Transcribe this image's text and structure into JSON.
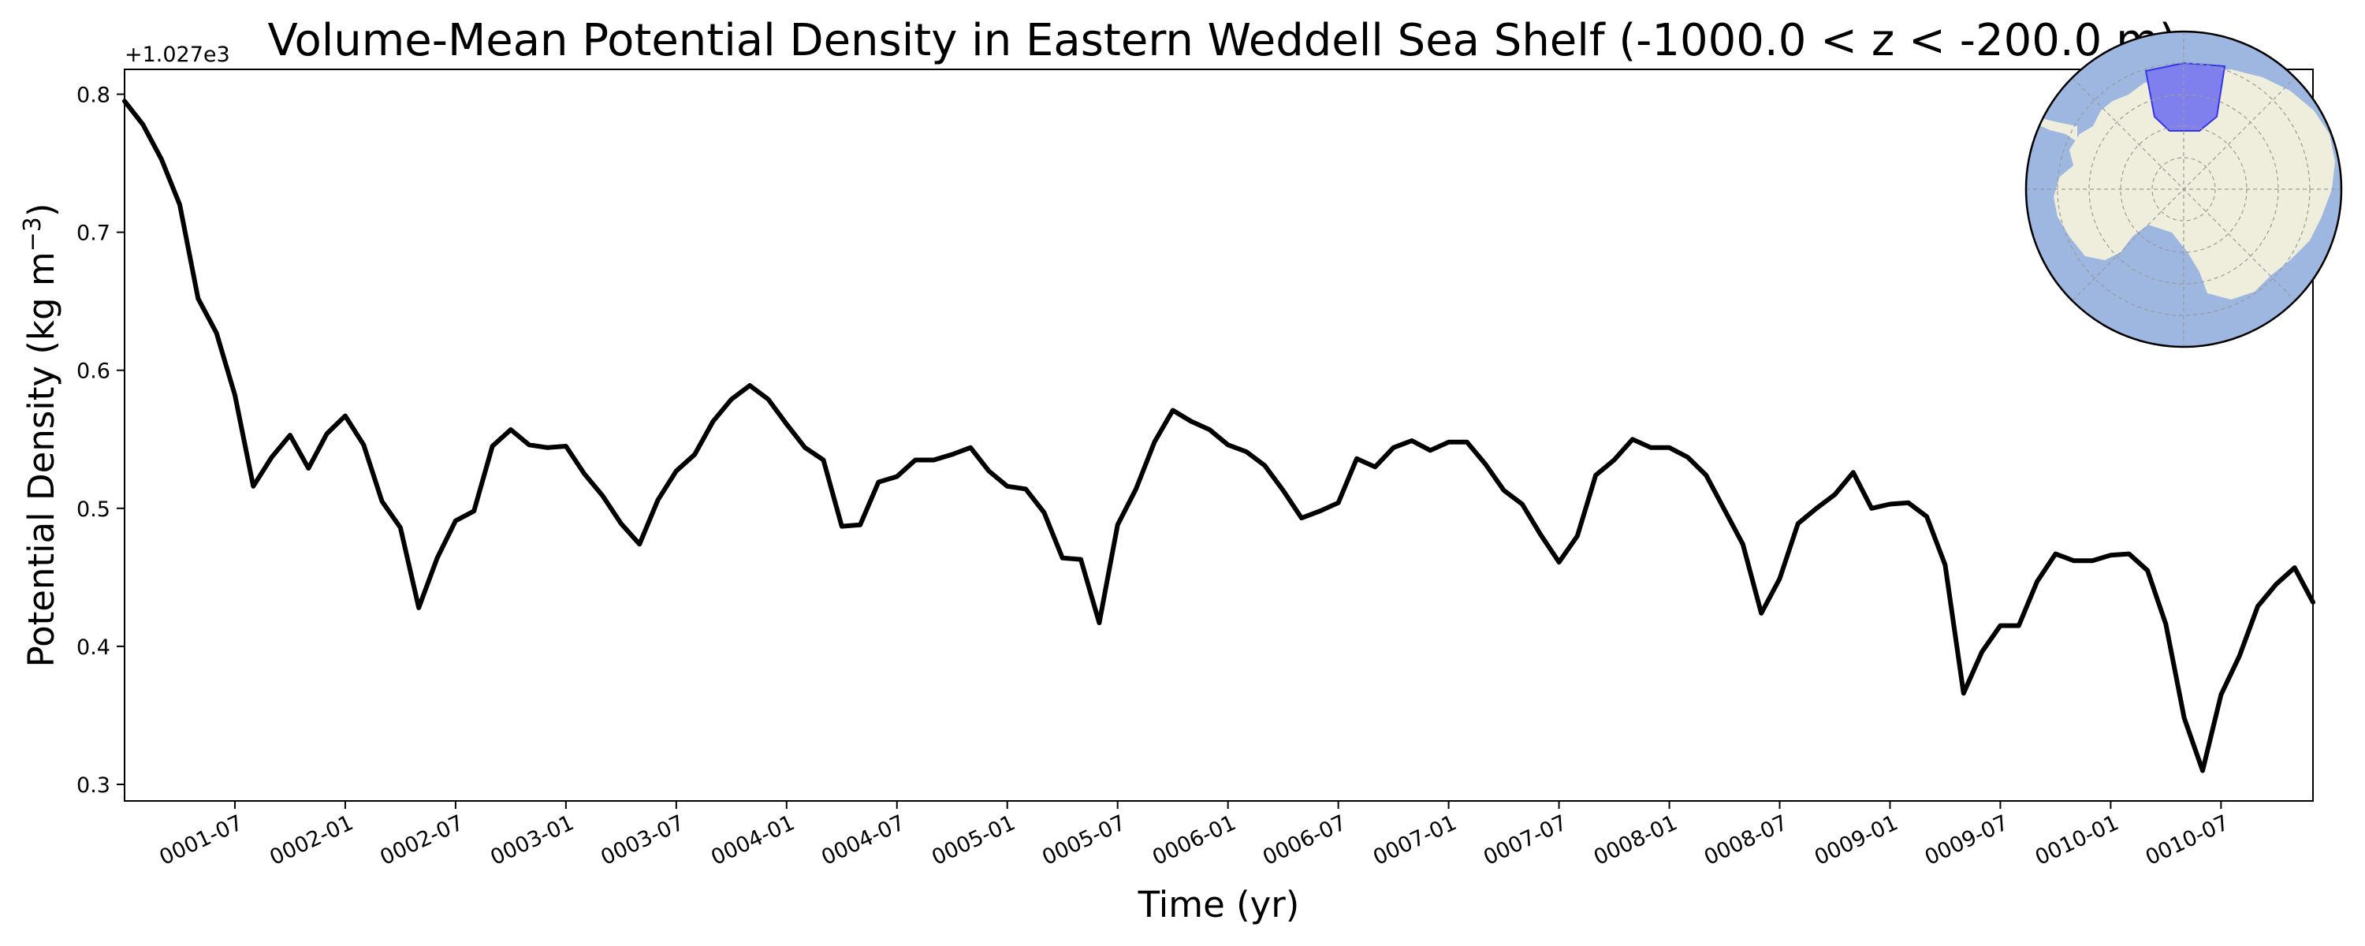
{
  "colors": {
    "line": "#000000",
    "ocean": "#9db7e0",
    "land": "#efeedd",
    "region": "#7f80ee",
    "region_edge": "#3535e8",
    "graticule": "#9a9a9a"
  },
  "chart_data": {
    "type": "line",
    "title": "Volume-Mean Potential Density in Eastern Weddell Sea Shelf (-1000.0 < z < -200.0 m)",
    "xlabel": "Time (yr)",
    "ylabel_main": "Potential Density (kg m",
    "ylabel_sup": "−3",
    "ylabel_close": ")",
    "y_offset_label": "+1.027e3",
    "y_offset": 1027,
    "ylim": [
      0.288,
      0.818
    ],
    "yticks": [
      0.3,
      0.4,
      0.5,
      0.6,
      0.7,
      0.8
    ],
    "ytick_labels": [
      "0.3",
      "0.4",
      "0.5",
      "0.6",
      "0.7",
      "0.8"
    ],
    "xlim_months": [
      0,
      119
    ],
    "xticks_months": [
      6,
      12,
      18,
      24,
      30,
      36,
      42,
      48,
      54,
      60,
      66,
      72,
      78,
      84,
      90,
      96,
      102,
      108,
      114
    ],
    "xtick_labels": [
      "0001-07",
      "0002-01",
      "0002-07",
      "0003-01",
      "0003-07",
      "0004-01",
      "0004-07",
      "0005-01",
      "0005-07",
      "0006-01",
      "0006-07",
      "0007-01",
      "0007-07",
      "0008-01",
      "0008-07",
      "0009-01",
      "0009-07",
      "0010-01",
      "0010-07"
    ],
    "grid": false,
    "legend": "none",
    "inset": "polar map of Antarctica with the Eastern Weddell Sea shelf region shaded",
    "series": [
      {
        "x_months": [
          0,
          1,
          2,
          3,
          4,
          5,
          6,
          7,
          8,
          9,
          10,
          11,
          12,
          13,
          14,
          15,
          16,
          17,
          18,
          19,
          20,
          21,
          22,
          23,
          24,
          25,
          26,
          27,
          28,
          29,
          30,
          31,
          32,
          33,
          34,
          35,
          36,
          37,
          38,
          39,
          40,
          41,
          42,
          43,
          44,
          45,
          46,
          47,
          48,
          49,
          50,
          51,
          52,
          53,
          54,
          55,
          56,
          57,
          58,
          59,
          60,
          61,
          62,
          63,
          64,
          65,
          66,
          67,
          68,
          69,
          70,
          71,
          72,
          73,
          74,
          75,
          76,
          77,
          78,
          79,
          80,
          81,
          82,
          83,
          84,
          85,
          86,
          87,
          88,
          89,
          90,
          91,
          92,
          93,
          94,
          95,
          96,
          97,
          98,
          99,
          100,
          101,
          102,
          103,
          104,
          105,
          106,
          107,
          108,
          109,
          110,
          111,
          112,
          113,
          114,
          115,
          116,
          117,
          118,
          119
        ],
        "values": [
          0.795,
          0.778,
          0.753,
          0.72,
          0.652,
          0.627,
          0.582,
          0.516,
          0.537,
          0.553,
          0.529,
          0.554,
          0.567,
          0.546,
          0.505,
          0.486,
          0.428,
          0.464,
          0.491,
          0.498,
          0.545,
          0.557,
          0.546,
          0.544,
          0.545,
          0.525,
          0.509,
          0.489,
          0.474,
          0.506,
          0.527,
          0.539,
          0.563,
          0.579,
          0.589,
          0.579,
          0.561,
          0.544,
          0.535,
          0.487,
          0.488,
          0.519,
          0.523,
          0.535,
          0.535,
          0.539,
          0.544,
          0.527,
          0.516,
          0.514,
          0.497,
          0.464,
          0.463,
          0.417,
          0.488,
          0.514,
          0.548,
          0.571,
          0.563,
          0.557,
          0.546,
          0.541,
          0.531,
          0.513,
          0.493,
          0.498,
          0.504,
          0.536,
          0.53,
          0.544,
          0.549,
          0.542,
          0.548,
          0.548,
          0.532,
          0.513,
          0.503,
          0.481,
          0.461,
          0.48,
          0.524,
          0.535,
          0.55,
          0.544,
          0.544,
          0.537,
          0.524,
          0.499,
          0.474,
          0.424,
          0.449,
          0.489,
          0.5,
          0.51,
          0.526,
          0.5,
          0.503,
          0.504,
          0.494,
          0.459,
          0.366,
          0.396,
          0.415,
          0.415,
          0.447,
          0.467,
          0.462,
          0.462,
          0.466,
          0.467,
          0.455,
          0.416,
          0.348,
          0.31,
          0.365,
          0.393,
          0.429,
          0.445,
          0.457,
          0.432
        ]
      }
    ]
  }
}
